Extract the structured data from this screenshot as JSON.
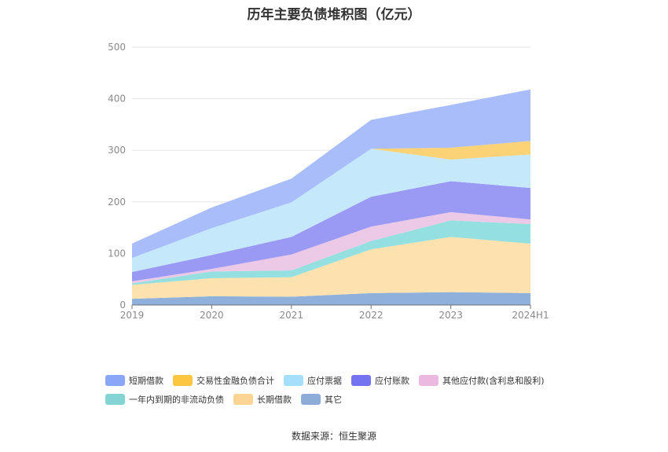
{
  "title": "历年主要负债堆积图（亿元）",
  "source": "数据来源：恒生聚源",
  "chart_data": {
    "type": "area",
    "stacked": true,
    "categories": [
      "2019",
      "2020",
      "2021",
      "2022",
      "2023",
      "2024H1"
    ],
    "ylim": [
      0,
      500
    ],
    "yticks": [
      0,
      100,
      200,
      300,
      400,
      500
    ],
    "grid": true,
    "legend_position": "bottom",
    "series": [
      {
        "name": "其它",
        "color": "#8fb0db",
        "values": [
          12,
          17,
          16,
          23,
          25,
          23
        ]
      },
      {
        "name": "长期借款",
        "color": "#fde2b0",
        "values": [
          27,
          35,
          38,
          85,
          107,
          96
        ]
      },
      {
        "name": "一年内到期的非流动负债",
        "color": "#94dfdf",
        "values": [
          3,
          13,
          13,
          16,
          32,
          38
        ]
      },
      {
        "name": "其他应付款(含利息和股利)",
        "color": "#ecc9e6",
        "values": [
          4,
          5,
          31,
          28,
          16,
          9
        ]
      },
      {
        "name": "应付账款",
        "color": "#9a9af5",
        "values": [
          18,
          27,
          34,
          58,
          60,
          61
        ]
      },
      {
        "name": "应付票据",
        "color": "#c5e9fb",
        "values": [
          27,
          52,
          67,
          93,
          42,
          65
        ]
      },
      {
        "name": "交易性金融负债合计",
        "color": "#fcd277",
        "values": [
          0,
          0,
          0,
          0,
          23,
          26
        ]
      },
      {
        "name": "短期借款",
        "color": "#a8bdfa",
        "values": [
          28,
          40,
          46,
          56,
          83,
          100
        ]
      }
    ],
    "legend": [
      {
        "name": "短期借款",
        "color": "#8aa6f7"
      },
      {
        "name": "交易性金融负债合计",
        "color": "#fcc640"
      },
      {
        "name": "应付票据",
        "color": "#a6dffb"
      },
      {
        "name": "应付账款",
        "color": "#7474f0"
      },
      {
        "name": "其他应付款(含利息和股利)",
        "color": "#ebb9e0"
      },
      {
        "name": "一年内到期的非流动负债",
        "color": "#84d4d4"
      },
      {
        "name": "长期借款",
        "color": "#fcd595"
      },
      {
        "name": "其它",
        "color": "#8eacd8"
      }
    ]
  }
}
